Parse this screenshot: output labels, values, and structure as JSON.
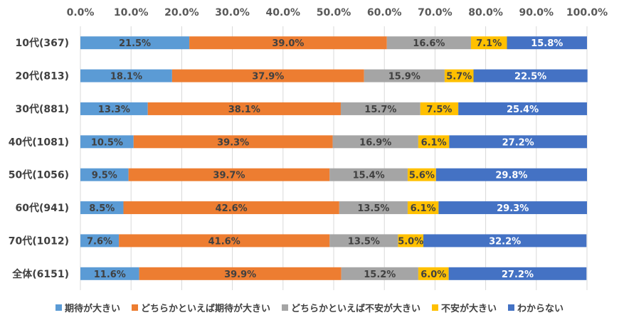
{
  "chart_data": {
    "type": "bar",
    "orientation": "horizontal",
    "stacked": true,
    "percent": true,
    "title": "",
    "xlabel": "",
    "ylabel": "",
    "xlim": [
      0,
      100
    ],
    "x_ticks": [
      "0.0%",
      "10.0%",
      "20.0%",
      "30.0%",
      "40.0%",
      "50.0%",
      "60.0%",
      "70.0%",
      "80.0%",
      "90.0%",
      "100.0%"
    ],
    "x_axis_position": "top",
    "grid": true,
    "legend_position": "bottom",
    "categories": [
      "10代(367)",
      "20代(813)",
      "30代(881)",
      "40代(1081)",
      "50代(1056)",
      "60代(941)",
      "70代(1012)",
      "全体(6151)"
    ],
    "series": [
      {
        "name": "期待が大きい",
        "color": "#5B9BD5",
        "label_color": "#404040",
        "values": [
          21.5,
          18.1,
          13.3,
          10.5,
          9.5,
          8.5,
          7.6,
          11.6
        ]
      },
      {
        "name": "どちらかといえば期待が大きい",
        "color": "#ED7D31",
        "label_color": "#404040",
        "values": [
          39.0,
          37.9,
          38.1,
          39.3,
          39.7,
          42.6,
          41.6,
          39.9
        ]
      },
      {
        "name": "どちらかといえば不安が大きい",
        "color": "#A5A5A5",
        "label_color": "#404040",
        "values": [
          16.6,
          15.9,
          15.7,
          16.9,
          15.4,
          13.5,
          13.5,
          15.2
        ]
      },
      {
        "name": "不安が大きい",
        "color": "#FFC000",
        "label_color": "#404040",
        "values": [
          7.1,
          5.7,
          7.5,
          6.1,
          5.6,
          6.1,
          5.0,
          6.0
        ]
      },
      {
        "name": "わからない",
        "color": "#4472C4",
        "label_color": "#FFFFFF",
        "values": [
          15.8,
          22.5,
          25.4,
          27.2,
          29.8,
          29.3,
          32.2,
          27.2
        ]
      }
    ]
  }
}
